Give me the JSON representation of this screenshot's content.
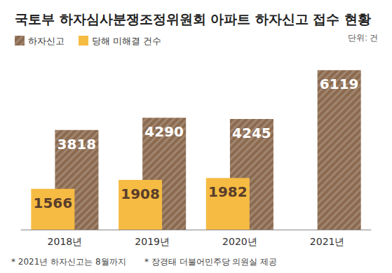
{
  "chart_data": {
    "type": "bar",
    "title": "국토부 하자심사분쟁조정위원회 아파트 하자신고 접수 현황",
    "ylabel": "단위: 건",
    "categories": [
      "2018년",
      "2019년",
      "2020년",
      "2021년"
    ],
    "series": [
      {
        "name": "하자신고",
        "color": "#8b6a4f",
        "values": [
          3818,
          4290,
          4245,
          6119
        ]
      },
      {
        "name": "당해 미해결 건수",
        "color": "#f6bb43",
        "values": [
          1566,
          1908,
          1982,
          null
        ]
      }
    ],
    "ylim": [
      0,
      6500
    ],
    "tick_labels": "x",
    "grid": false,
    "legend": "top-left",
    "data_labels": true,
    "annotations": [
      "* 2021년 하자신고는 8월까지",
      "* 장경태 더불어민주당 의원실 제공"
    ]
  }
}
